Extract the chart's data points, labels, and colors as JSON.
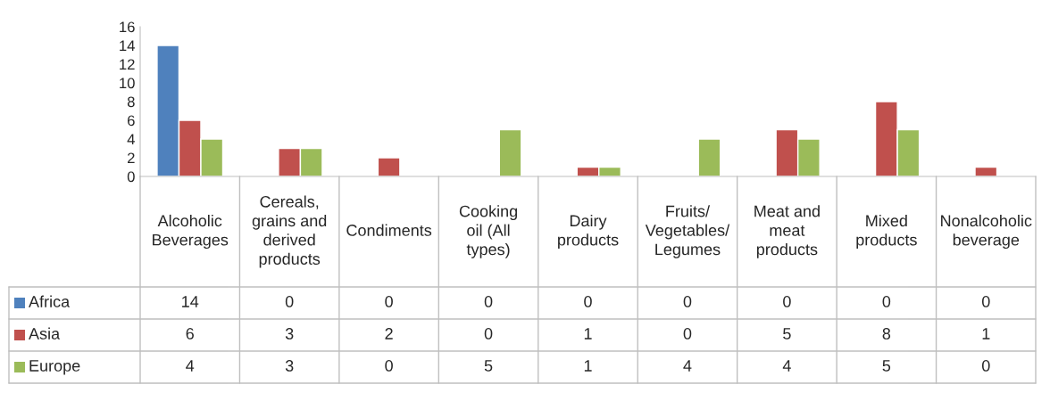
{
  "chart_data": {
    "type": "bar",
    "categories": [
      "Alcoholic\nBeverages",
      "Cereals,\ngrains and\nderived\nproducts",
      "Condiments",
      "Cooking\noil (All\ntypes)",
      "Dairy\nproducts",
      "Fruits/\nVegetables/\nLegumes",
      "Meat and\nmeat\nproducts",
      "Mixed\nproducts",
      "Nonalcoholic\nbeverage"
    ],
    "series": [
      {
        "name": "Africa",
        "color": "#4f81bd",
        "values": [
          14,
          0,
          0,
          0,
          0,
          0,
          0,
          0,
          0
        ]
      },
      {
        "name": "Asia",
        "color": "#c0504d",
        "values": [
          6,
          3,
          2,
          0,
          1,
          0,
          5,
          8,
          1
        ]
      },
      {
        "name": "Europe",
        "color": "#9bbb59",
        "values": [
          4,
          3,
          0,
          5,
          1,
          4,
          4,
          5,
          0
        ]
      }
    ],
    "ylim": [
      0,
      16
    ],
    "yticks": [
      0,
      2,
      4,
      6,
      8,
      10,
      12,
      14,
      16
    ],
    "grid": false,
    "legend": "bottom",
    "data_labels": true
  }
}
